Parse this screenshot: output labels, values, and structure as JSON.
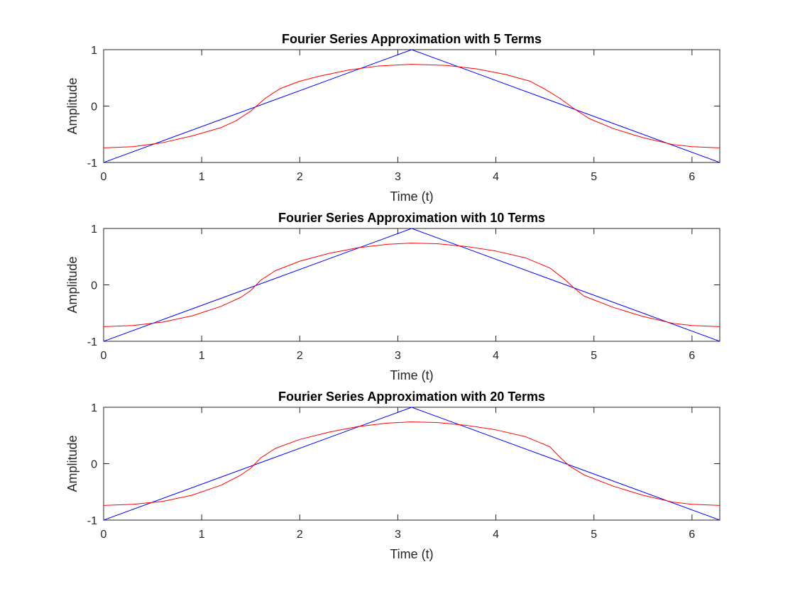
{
  "figure": {
    "background": "#ffffff"
  },
  "chart_data": [
    {
      "type": "line",
      "title": "Fourier Series Approximation with 5 Terms",
      "xlabel": "Time (t)",
      "ylabel": "Amplitude",
      "xlim": [
        0,
        6.2832
      ],
      "ylim": [
        -1,
        1
      ],
      "xticks": [
        0,
        1,
        2,
        3,
        4,
        5,
        6
      ],
      "xticklabels": [
        "0",
        "1",
        "2",
        "3",
        "4",
        "5",
        "6"
      ],
      "yticks": [
        -1,
        0,
        1
      ],
      "yticklabels": [
        "-1",
        "0",
        "1"
      ],
      "grid": false,
      "legend": "none",
      "series": [
        {
          "color": "#0000ff",
          "x": [
            0,
            3.1416,
            6.2832
          ],
          "y": [
            -1,
            1,
            -1
          ]
        },
        {
          "color": "#ff0000",
          "x": [
            0,
            0.3,
            0.6,
            0.9,
            1.2,
            1.35,
            1.5,
            1.65,
            1.8,
            2.0,
            2.2,
            2.5,
            2.8,
            3.1416,
            3.5,
            3.8,
            4.1,
            4.35,
            4.5,
            4.65,
            4.8,
            4.95,
            5.2,
            5.5,
            5.8,
            6.0,
            6.2832
          ],
          "y": [
            -0.74,
            -0.72,
            -0.65,
            -0.53,
            -0.38,
            -0.26,
            -0.09,
            0.14,
            0.31,
            0.44,
            0.53,
            0.64,
            0.71,
            0.74,
            0.72,
            0.66,
            0.56,
            0.44,
            0.3,
            0.14,
            -0.05,
            -0.22,
            -0.4,
            -0.56,
            -0.68,
            -0.72,
            -0.74
          ]
        }
      ]
    },
    {
      "type": "line",
      "title": "Fourier Series Approximation with 10 Terms",
      "xlabel": "Time (t)",
      "ylabel": "Amplitude",
      "xlim": [
        0,
        6.2832
      ],
      "ylim": [
        -1,
        1
      ],
      "xticks": [
        0,
        1,
        2,
        3,
        4,
        5,
        6
      ],
      "xticklabels": [
        "0",
        "1",
        "2",
        "3",
        "4",
        "5",
        "6"
      ],
      "yticks": [
        -1,
        0,
        1
      ],
      "yticklabels": [
        "-1",
        "0",
        "1"
      ],
      "grid": false,
      "legend": "none",
      "series": [
        {
          "color": "#0000ff",
          "x": [
            0,
            3.1416,
            6.2832
          ],
          "y": [
            -1,
            1,
            -1
          ]
        },
        {
          "color": "#ff0000",
          "x": [
            0,
            0.3,
            0.6,
            0.9,
            1.2,
            1.4,
            1.5,
            1.6,
            1.75,
            2.0,
            2.3,
            2.6,
            2.9,
            3.1416,
            3.4,
            3.7,
            4.0,
            4.3,
            4.55,
            4.7,
            4.8,
            4.9,
            5.2,
            5.5,
            5.8,
            6.0,
            6.2832
          ],
          "y": [
            -0.74,
            -0.72,
            -0.66,
            -0.55,
            -0.38,
            -0.22,
            -0.1,
            0.08,
            0.25,
            0.42,
            0.56,
            0.66,
            0.72,
            0.74,
            0.73,
            0.68,
            0.6,
            0.48,
            0.3,
            0.1,
            -0.06,
            -0.2,
            -0.4,
            -0.56,
            -0.68,
            -0.72,
            -0.74
          ]
        }
      ]
    },
    {
      "type": "line",
      "title": "Fourier Series Approximation with 20 Terms",
      "xlabel": "Time (t)",
      "ylabel": "Amplitude",
      "xlim": [
        0,
        6.2832
      ],
      "ylim": [
        -1,
        1
      ],
      "xticks": [
        0,
        1,
        2,
        3,
        4,
        5,
        6
      ],
      "xticklabels": [
        "0",
        "1",
        "2",
        "3",
        "4",
        "5",
        "6"
      ],
      "yticks": [
        -1,
        0,
        1
      ],
      "yticklabels": [
        "-1",
        "0",
        "1"
      ],
      "grid": false,
      "legend": "none",
      "series": [
        {
          "color": "#0000ff",
          "x": [
            0,
            3.1416,
            6.2832
          ],
          "y": [
            -1,
            1,
            -1
          ]
        },
        {
          "color": "#ff0000",
          "x": [
            0,
            0.3,
            0.6,
            0.9,
            1.2,
            1.4,
            1.5,
            1.6,
            1.75,
            2.0,
            2.3,
            2.6,
            2.9,
            3.1416,
            3.4,
            3.7,
            4.0,
            4.3,
            4.55,
            4.65,
            4.75,
            4.9,
            5.2,
            5.5,
            5.8,
            6.0,
            6.2832
          ],
          "y": [
            -0.74,
            -0.72,
            -0.67,
            -0.56,
            -0.38,
            -0.2,
            -0.08,
            0.1,
            0.27,
            0.43,
            0.56,
            0.66,
            0.72,
            0.74,
            0.73,
            0.68,
            0.6,
            0.48,
            0.3,
            0.12,
            -0.04,
            -0.2,
            -0.4,
            -0.56,
            -0.68,
            -0.72,
            -0.74
          ]
        }
      ]
    }
  ]
}
